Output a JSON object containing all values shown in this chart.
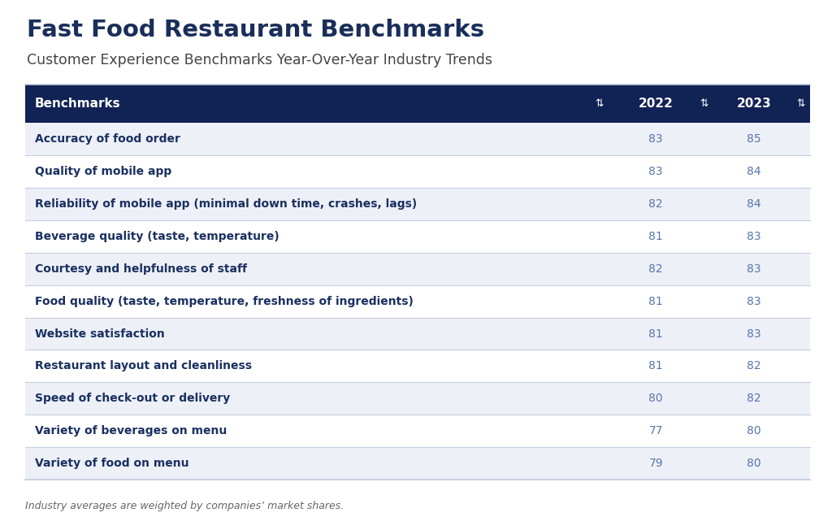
{
  "title": "Fast Food Restaurant Benchmarks",
  "subtitle": "Customer Experience Benchmarks Year-Over-Year Industry Trends",
  "footnote": "Industry averages are weighted by companies’ market shares.",
  "header": [
    "Benchmarks",
    "2022",
    "2023"
  ],
  "rows": [
    [
      "Accuracy of food order",
      "83",
      "85"
    ],
    [
      "Quality of mobile app",
      "83",
      "84"
    ],
    [
      "Reliability of mobile app (minimal down time, crashes, lags)",
      "82",
      "84"
    ],
    [
      "Beverage quality (taste, temperature)",
      "81",
      "83"
    ],
    [
      "Courtesy and helpfulness of staff",
      "82",
      "83"
    ],
    [
      "Food quality (taste, temperature, freshness of ingredients)",
      "81",
      "83"
    ],
    [
      "Website satisfaction",
      "81",
      "83"
    ],
    [
      "Restaurant layout and cleanliness",
      "81",
      "82"
    ],
    [
      "Speed of check-out or delivery",
      "80",
      "82"
    ],
    [
      "Variety of beverages on menu",
      "77",
      "80"
    ],
    [
      "Variety of food on menu",
      "79",
      "80"
    ]
  ],
  "header_bg": "#112255",
  "header_text_color": "#ffffff",
  "row_bg_odd": "#edf0f7",
  "row_bg_even": "#ffffff",
  "row_text_color": "#1a3060",
  "value_text_color": "#5577aa",
  "title_color": "#1a2e5a",
  "subtitle_color": "#444444",
  "footnote_color": "#666666",
  "border_color": "#c5cde0",
  "bg_color": "#ffffff",
  "sort_icon": "⇅"
}
